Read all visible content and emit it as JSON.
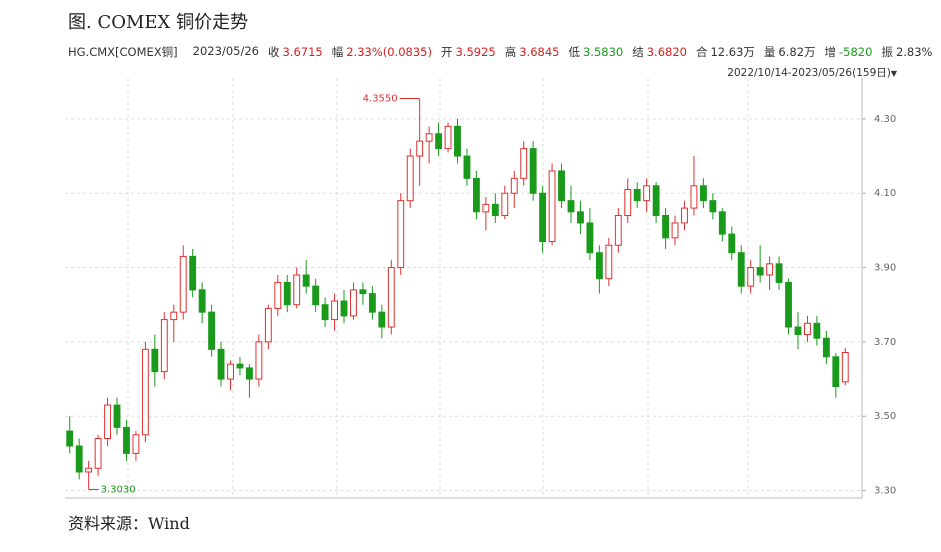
{
  "title": "图. COMEX 铜价走势",
  "info": {
    "code": "HG.CMX[COMEX铜]",
    "date": "2023/05/26",
    "fields": [
      {
        "label": "收",
        "value": "3.6715",
        "color": "#d62020"
      },
      {
        "label": "幅",
        "value": "2.33%(0.0835)",
        "color": "#d62020"
      },
      {
        "label": "开",
        "value": "3.5925",
        "color": "#d62020"
      },
      {
        "label": "高",
        "value": "3.6845",
        "color": "#d62020"
      },
      {
        "label": "低",
        "value": "3.5830",
        "color": "#1a9a1a"
      },
      {
        "label": "结",
        "value": "3.6820",
        "color": "#d62020"
      },
      {
        "label": "合",
        "value": "12.63万",
        "color": "#333333"
      },
      {
        "label": "量",
        "value": "6.82万",
        "color": "#333333"
      },
      {
        "label": "增",
        "value": "-5820",
        "color": "#1a9a1a"
      },
      {
        "label": "振",
        "value": "2.83%",
        "color": "#333333"
      }
    ],
    "range": "2022/10/14-2023/05/26(159日)"
  },
  "chart_data": {
    "type": "candlestick",
    "up_color": "#e03030",
    "down_color": "#1a9a1a",
    "grid": true,
    "ylim": [
      3.28,
      4.41
    ],
    "yticks": [
      {
        "value": 3.3,
        "label": "3.30"
      },
      {
        "value": 3.5,
        "label": "3.50"
      },
      {
        "value": 3.7,
        "label": "3.70"
      },
      {
        "value": 3.9,
        "label": "3.90"
      },
      {
        "value": 4.1,
        "label": "4.10"
      },
      {
        "value": 4.3,
        "label": "4.30"
      }
    ],
    "max_label": {
      "value": 4.355,
      "label": "4.3550"
    },
    "min_label": {
      "value": 3.303,
      "label": "3.3030"
    },
    "ohlc": [
      [
        3.46,
        3.5,
        3.4,
        3.42
      ],
      [
        3.42,
        3.44,
        3.33,
        3.35
      ],
      [
        3.35,
        3.38,
        3.303,
        3.36
      ],
      [
        3.36,
        3.45,
        3.34,
        3.44
      ],
      [
        3.44,
        3.55,
        3.42,
        3.53
      ],
      [
        3.53,
        3.55,
        3.45,
        3.47
      ],
      [
        3.47,
        3.49,
        3.38,
        3.4
      ],
      [
        3.4,
        3.46,
        3.38,
        3.45
      ],
      [
        3.45,
        3.7,
        3.43,
        3.68
      ],
      [
        3.68,
        3.72,
        3.58,
        3.62
      ],
      [
        3.62,
        3.78,
        3.6,
        3.76
      ],
      [
        3.76,
        3.8,
        3.7,
        3.78
      ],
      [
        3.78,
        3.96,
        3.76,
        3.93
      ],
      [
        3.93,
        3.95,
        3.82,
        3.84
      ],
      [
        3.84,
        3.86,
        3.75,
        3.78
      ],
      [
        3.78,
        3.8,
        3.66,
        3.68
      ],
      [
        3.68,
        3.7,
        3.58,
        3.6
      ],
      [
        3.6,
        3.65,
        3.57,
        3.64
      ],
      [
        3.64,
        3.66,
        3.61,
        3.63
      ],
      [
        3.63,
        3.64,
        3.55,
        3.6
      ],
      [
        3.6,
        3.72,
        3.58,
        3.7
      ],
      [
        3.7,
        3.8,
        3.68,
        3.79
      ],
      [
        3.79,
        3.88,
        3.77,
        3.86
      ],
      [
        3.86,
        3.88,
        3.78,
        3.8
      ],
      [
        3.8,
        3.9,
        3.79,
        3.88
      ],
      [
        3.88,
        3.92,
        3.83,
        3.85
      ],
      [
        3.85,
        3.87,
        3.78,
        3.8
      ],
      [
        3.8,
        3.82,
        3.74,
        3.76
      ],
      [
        3.76,
        3.83,
        3.73,
        3.81
      ],
      [
        3.81,
        3.84,
        3.75,
        3.77
      ],
      [
        3.77,
        3.86,
        3.76,
        3.84
      ],
      [
        3.84,
        3.86,
        3.8,
        3.83
      ],
      [
        3.83,
        3.85,
        3.76,
        3.78
      ],
      [
        3.78,
        3.8,
        3.71,
        3.74
      ],
      [
        3.74,
        3.92,
        3.72,
        3.9
      ],
      [
        3.9,
        4.1,
        3.88,
        4.08
      ],
      [
        4.08,
        4.22,
        4.06,
        4.2
      ],
      [
        4.2,
        4.355,
        4.12,
        4.24
      ],
      [
        4.24,
        4.28,
        4.18,
        4.26
      ],
      [
        4.26,
        4.29,
        4.2,
        4.22
      ],
      [
        4.22,
        4.29,
        4.21,
        4.28
      ],
      [
        4.28,
        4.3,
        4.18,
        4.2
      ],
      [
        4.2,
        4.22,
        4.12,
        4.14
      ],
      [
        4.14,
        4.16,
        4.03,
        4.05
      ],
      [
        4.05,
        4.09,
        4.0,
        4.07
      ],
      [
        4.07,
        4.1,
        4.02,
        4.04
      ],
      [
        4.04,
        4.12,
        4.03,
        4.1
      ],
      [
        4.1,
        4.16,
        4.06,
        4.14
      ],
      [
        4.14,
        4.24,
        4.12,
        4.22
      ],
      [
        4.22,
        4.24,
        4.08,
        4.1
      ],
      [
        4.1,
        4.12,
        3.94,
        3.97
      ],
      [
        3.97,
        4.18,
        3.96,
        4.16
      ],
      [
        4.16,
        4.18,
        4.06,
        4.08
      ],
      [
        4.08,
        4.12,
        4.02,
        4.05
      ],
      [
        4.05,
        4.08,
        3.99,
        4.02
      ],
      [
        4.02,
        4.06,
        3.92,
        3.94
      ],
      [
        3.94,
        3.96,
        3.83,
        3.87
      ],
      [
        3.87,
        3.98,
        3.85,
        3.96
      ],
      [
        3.96,
        4.06,
        3.94,
        4.04
      ],
      [
        4.04,
        4.14,
        4.02,
        4.11
      ],
      [
        4.11,
        4.13,
        4.06,
        4.08
      ],
      [
        4.08,
        4.14,
        4.05,
        4.12
      ],
      [
        4.12,
        4.13,
        4.02,
        4.04
      ],
      [
        4.04,
        4.06,
        3.95,
        3.98
      ],
      [
        3.98,
        4.04,
        3.96,
        4.02
      ],
      [
        4.02,
        4.08,
        4.0,
        4.06
      ],
      [
        4.06,
        4.2,
        4.04,
        4.12
      ],
      [
        4.12,
        4.14,
        4.06,
        4.08
      ],
      [
        4.08,
        4.1,
        4.03,
        4.05
      ],
      [
        4.05,
        4.06,
        3.97,
        3.99
      ],
      [
        3.99,
        4.01,
        3.92,
        3.94
      ],
      [
        3.94,
        3.96,
        3.83,
        3.85
      ],
      [
        3.85,
        3.92,
        3.83,
        3.9
      ],
      [
        3.9,
        3.96,
        3.86,
        3.88
      ],
      [
        3.88,
        3.93,
        3.84,
        3.91
      ],
      [
        3.91,
        3.93,
        3.84,
        3.86
      ],
      [
        3.86,
        3.87,
        3.72,
        3.74
      ],
      [
        3.74,
        3.78,
        3.68,
        3.72
      ],
      [
        3.72,
        3.77,
        3.7,
        3.75
      ],
      [
        3.75,
        3.77,
        3.69,
        3.71
      ],
      [
        3.71,
        3.73,
        3.64,
        3.66
      ],
      [
        3.66,
        3.67,
        3.55,
        3.58
      ],
      [
        3.5925,
        3.6845,
        3.583,
        3.6715
      ]
    ]
  },
  "source": "资料来源：Wind"
}
